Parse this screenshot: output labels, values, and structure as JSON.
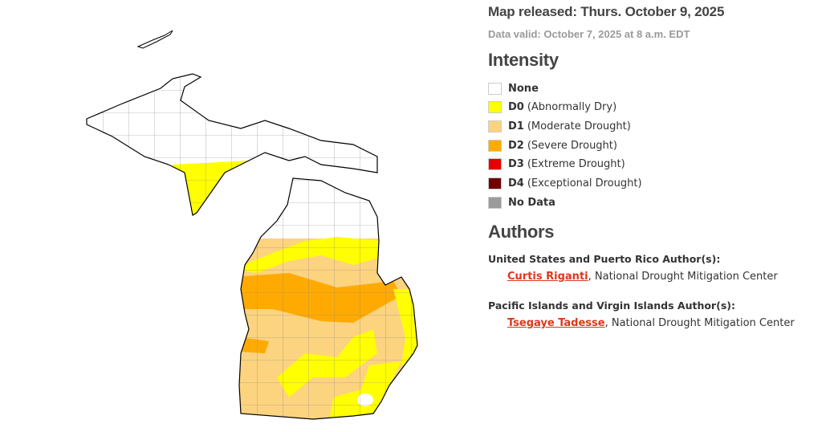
{
  "header": {
    "released": "Map released: Thurs. October 9, 2025",
    "valid": "Data valid: October 7, 2025 at 8 a.m. EDT"
  },
  "legend": {
    "title": "Intensity",
    "items": [
      {
        "code": "None",
        "desc": "",
        "color": "#ffffff"
      },
      {
        "code": "D0",
        "desc": "(Abnormally Dry)",
        "color": "#ffff00"
      },
      {
        "code": "D1",
        "desc": "(Moderate Drought)",
        "color": "#fcd37f"
      },
      {
        "code": "D2",
        "desc": "(Severe Drought)",
        "color": "#ffaa00"
      },
      {
        "code": "D3",
        "desc": "(Extreme Drought)",
        "color": "#e60000"
      },
      {
        "code": "D4",
        "desc": "(Exceptional Drought)",
        "color": "#730000"
      },
      {
        "code": "No Data",
        "desc": "",
        "color": "#9b9b9b"
      }
    ]
  },
  "authors": {
    "title": "Authors",
    "groups": [
      {
        "heading": "United States and Puerto Rico Author(s):",
        "name": "Curtis Riganti",
        "affiliation": ", National Drought Mitigation Center"
      },
      {
        "heading": "Pacific Islands and Virgin Islands Author(s):",
        "name": "Tsegaye Tadesse",
        "affiliation": ", National Drought Mitigation Center"
      }
    ]
  }
}
